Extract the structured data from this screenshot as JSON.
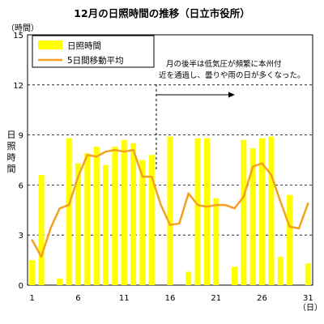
{
  "chart_data": {
    "type": "bar",
    "title": "12月の日照時間の推移（日立市役所）",
    "ylabel": "日照時間",
    "yunit": "（時間）",
    "xunit": "（日）",
    "ylim": [
      0,
      15
    ],
    "xlim": [
      0.5,
      31.5
    ],
    "yticks": [
      0,
      3,
      6,
      9,
      12,
      15
    ],
    "xticks": [
      1,
      6,
      11,
      16,
      21,
      26,
      31
    ],
    "grid": "horizontal dashed",
    "legend_position": "top-left",
    "x": [
      1,
      2,
      3,
      4,
      5,
      6,
      7,
      8,
      9,
      10,
      11,
      12,
      13,
      14,
      15,
      16,
      17,
      18,
      19,
      20,
      21,
      22,
      23,
      24,
      25,
      26,
      27,
      28,
      29,
      30,
      31
    ],
    "series": [
      {
        "name": "日照時間",
        "type": "bar",
        "color": "#ffff00",
        "values": [
          1.5,
          6.6,
          0.0,
          0.4,
          8.8,
          7.3,
          7.9,
          8.3,
          7.2,
          8.3,
          8.7,
          8.5,
          7.5,
          7.8,
          0.0,
          8.9,
          0.0,
          0.8,
          8.8,
          8.8,
          5.2,
          0.0,
          1.1,
          8.7,
          8.2,
          8.8,
          8.9,
          1.7,
          5.4,
          0.0,
          1.3
        ]
      },
      {
        "name": "5日間移動平均",
        "type": "line",
        "color": "#f5a020",
        "values": [
          2.7,
          1.7,
          3.4,
          4.6,
          4.8,
          6.5,
          7.8,
          7.7,
          8.0,
          8.1,
          8.0,
          8.1,
          6.5,
          6.5,
          4.8,
          3.6,
          3.7,
          5.5,
          4.8,
          4.7,
          4.8,
          4.8,
          4.6,
          5.3,
          7.1,
          7.3,
          6.6,
          5.0,
          3.5,
          3.4,
          4.9
        ]
      }
    ],
    "annotation": {
      "lines": [
        "月の後半は低気圧が頻繁に本州付",
        "近を通過し、曇りや雨の日が多くなった。"
      ],
      "marker_day": 14.5,
      "arrow": "right"
    }
  }
}
